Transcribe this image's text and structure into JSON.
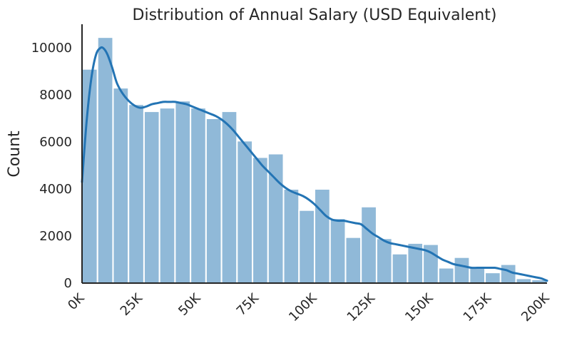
{
  "chart_data": {
    "type": "bar",
    "title": "Distribution of Annual Salary (USD Equivalent)",
    "xlabel": "",
    "ylabel": "Count",
    "xlim": [
      0,
      200000
    ],
    "ylim": [
      0,
      11000
    ],
    "x_ticks": [
      {
        "value": 0,
        "label": "0K"
      },
      {
        "value": 25000,
        "label": "25K"
      },
      {
        "value": 50000,
        "label": "50K"
      },
      {
        "value": 75000,
        "label": "75K"
      },
      {
        "value": 100000,
        "label": "100K"
      },
      {
        "value": 125000,
        "label": "125K"
      },
      {
        "value": 150000,
        "label": "150K"
      },
      {
        "value": 175000,
        "label": "175K"
      },
      {
        "value": 200000,
        "label": "200K"
      }
    ],
    "y_ticks": [
      {
        "value": 0,
        "label": "0"
      },
      {
        "value": 2000,
        "label": "2000"
      },
      {
        "value": 4000,
        "label": "4000"
      },
      {
        "value": 6000,
        "label": "6000"
      },
      {
        "value": 8000,
        "label": "8000"
      },
      {
        "value": 10000,
        "label": "10000"
      }
    ],
    "bins": [
      {
        "start": 0,
        "end": 6666.67,
        "count": 9100
      },
      {
        "start": 6666.67,
        "end": 13333.33,
        "count": 10450
      },
      {
        "start": 13333.33,
        "end": 20000,
        "count": 8300
      },
      {
        "start": 20000,
        "end": 26666.67,
        "count": 7600
      },
      {
        "start": 26666.67,
        "end": 33333.33,
        "count": 7300
      },
      {
        "start": 33333.33,
        "end": 40000,
        "count": 7450
      },
      {
        "start": 40000,
        "end": 46666.67,
        "count": 7750
      },
      {
        "start": 46666.67,
        "end": 53333.33,
        "count": 7450
      },
      {
        "start": 53333.33,
        "end": 60000,
        "count": 7000
      },
      {
        "start": 60000,
        "end": 66666.67,
        "count": 7300
      },
      {
        "start": 66666.67,
        "end": 73333.33,
        "count": 6050
      },
      {
        "start": 73333.33,
        "end": 80000,
        "count": 5350
      },
      {
        "start": 80000,
        "end": 86666.67,
        "count": 5500
      },
      {
        "start": 86666.67,
        "end": 93333.33,
        "count": 4000
      },
      {
        "start": 93333.33,
        "end": 100000,
        "count": 3100
      },
      {
        "start": 100000,
        "end": 106666.67,
        "count": 4000
      },
      {
        "start": 106666.67,
        "end": 113333.33,
        "count": 2750
      },
      {
        "start": 113333.33,
        "end": 120000,
        "count": 1950
      },
      {
        "start": 120000,
        "end": 126666.67,
        "count": 3250
      },
      {
        "start": 126666.67,
        "end": 133333.33,
        "count": 1900
      },
      {
        "start": 133333.33,
        "end": 140000,
        "count": 1250
      },
      {
        "start": 140000,
        "end": 146666.67,
        "count": 1700
      },
      {
        "start": 146666.67,
        "end": 153333.33,
        "count": 1650
      },
      {
        "start": 153333.33,
        "end": 160000,
        "count": 650
      },
      {
        "start": 160000,
        "end": 166666.67,
        "count": 1100
      },
      {
        "start": 166666.67,
        "end": 173333.33,
        "count": 700
      },
      {
        "start": 173333.33,
        "end": 180000,
        "count": 450
      },
      {
        "start": 180000,
        "end": 186666.67,
        "count": 800
      },
      {
        "start": 186666.67,
        "end": 193333.33,
        "count": 200
      },
      {
        "start": 193333.33,
        "end": 200000,
        "count": 150
      }
    ],
    "kde_curve": {
      "x": [
        0,
        2000,
        4000,
        6000,
        8000,
        9500,
        11000,
        13000,
        15000,
        17500,
        20000,
        22500,
        25000,
        27500,
        30000,
        32500,
        35000,
        37500,
        40000,
        42500,
        45000,
        47500,
        50000,
        52500,
        55000,
        57500,
        60000,
        62500,
        65000,
        67500,
        70000,
        72500,
        75000,
        77500,
        80000,
        82500,
        85000,
        87500,
        90000,
        92500,
        95000,
        97500,
        100000,
        102500,
        105000,
        107500,
        110000,
        112500,
        115000,
        117500,
        120000,
        122500,
        125000,
        127500,
        130000,
        132500,
        135000,
        137500,
        140000,
        142500,
        145000,
        147500,
        150000,
        152500,
        155000,
        157500,
        160000,
        162500,
        165000,
        167500,
        170000,
        172500,
        175000,
        177500,
        180000,
        182500,
        185000,
        187500,
        190000,
        192500,
        195000,
        197500,
        200000
      ],
      "y": [
        4300,
        6900,
        8700,
        9700,
        10000,
        9950,
        9700,
        9150,
        8500,
        8050,
        7750,
        7550,
        7450,
        7500,
        7600,
        7650,
        7700,
        7700,
        7700,
        7650,
        7600,
        7500,
        7400,
        7300,
        7200,
        7100,
        6950,
        6750,
        6500,
        6200,
        5900,
        5600,
        5300,
        5000,
        4750,
        4500,
        4250,
        4050,
        3900,
        3800,
        3700,
        3550,
        3350,
        3100,
        2850,
        2700,
        2650,
        2650,
        2600,
        2550,
        2500,
        2300,
        2100,
        1950,
        1800,
        1700,
        1650,
        1600,
        1550,
        1500,
        1450,
        1400,
        1300,
        1150,
        1000,
        900,
        800,
        750,
        700,
        650,
        650,
        650,
        650,
        650,
        600,
        550,
        450,
        400,
        350,
        300,
        250,
        200,
        100
      ]
    },
    "bar_color": "#90b9d8",
    "bar_edge_color": "#ffffff",
    "line_color": "#2374b4",
    "axis_color": "#262626",
    "grid": false,
    "legend": "none"
  }
}
